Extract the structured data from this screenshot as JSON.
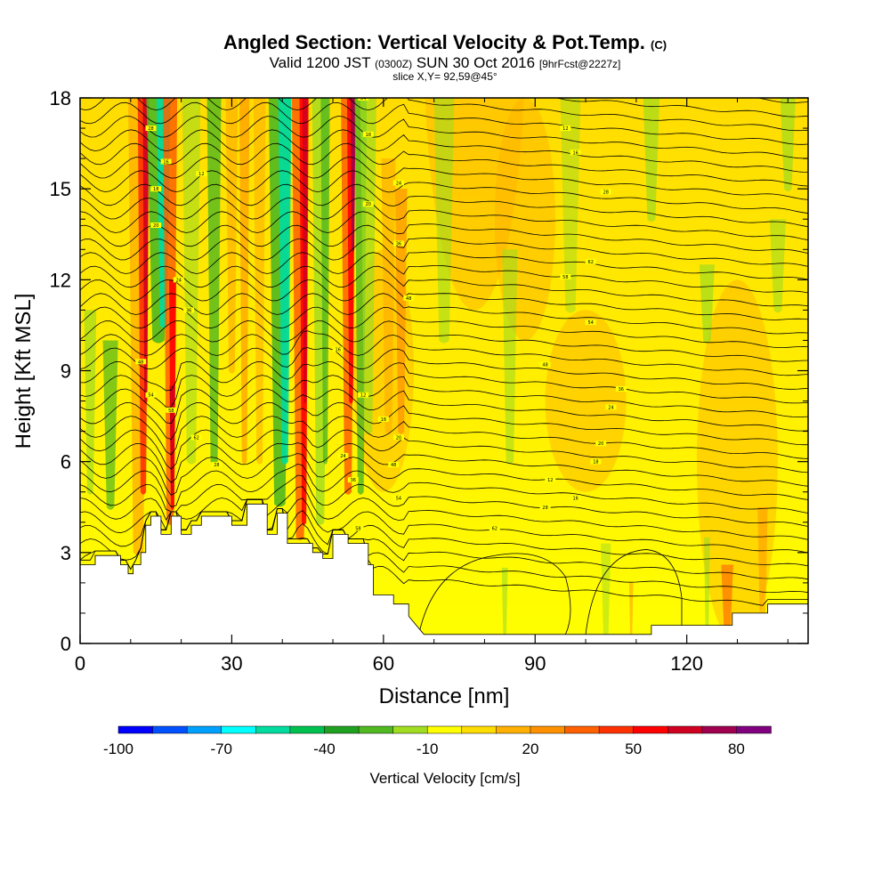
{
  "chart_data": {
    "type": "heatmap",
    "title": "Angled Section: Vertical Velocity & Pot.Temp.",
    "title_unit": "(C)",
    "subtitle_valid": "Valid 1200 JST",
    "subtitle_utc": "(0300Z)",
    "subtitle_date": "SUN 30 Oct 2016",
    "subtitle_fcst": "[9hrFcst@2227z]",
    "slice_label": "slice X,Y= 92,59@45°",
    "xlabel": "Distance [nm]",
    "ylabel": "Height [Kft MSL]",
    "xlim": [
      0,
      144
    ],
    "ylim": [
      0,
      18
    ],
    "x_ticks": [
      0,
      30,
      60,
      90,
      120
    ],
    "y_ticks": [
      0,
      3,
      6,
      9,
      12,
      15,
      18
    ],
    "grid": false,
    "colorbar": {
      "title": "Vertical Velocity [cm/s]",
      "tick_labels": [
        "-100",
        "-70",
        "-40",
        "-10",
        "20",
        "50",
        "80"
      ],
      "tick_values": [
        -100,
        -70,
        -40,
        -10,
        20,
        50,
        80
      ],
      "range": [
        -100,
        90
      ],
      "colors": [
        "#0000ff",
        "#0050ff",
        "#00a0ff",
        "#00ffff",
        "#00dca0",
        "#00c050",
        "#20a020",
        "#50b820",
        "#a0dc20",
        "#ffff00",
        "#ffdc00",
        "#ffb000",
        "#ff9000",
        "#ff6000",
        "#ff3000",
        "#ff0000",
        "#d00020",
        "#a00050",
        "#800080"
      ]
    },
    "updraft_bands_x": [
      12,
      18,
      44,
      55,
      63
    ],
    "downdraft_bands_x": [
      15,
      26,
      40,
      56
    ],
    "terrain_height_kft": [
      [
        0,
        2.6
      ],
      [
        3,
        2.6
      ],
      [
        3,
        2.9
      ],
      [
        8,
        2.9
      ],
      [
        8,
        2.6
      ],
      [
        9.5,
        2.6
      ],
      [
        9.5,
        2.3
      ],
      [
        10.5,
        2.3
      ],
      [
        10.5,
        2.6
      ],
      [
        12,
        2.6
      ],
      [
        12,
        3.0
      ],
      [
        13,
        3.0
      ],
      [
        13,
        3.9
      ],
      [
        14,
        3.9
      ],
      [
        14,
        4.2
      ],
      [
        16,
        4.2
      ],
      [
        16,
        3.6
      ],
      [
        18,
        3.6
      ],
      [
        18,
        4.2
      ],
      [
        20,
        4.2
      ],
      [
        20,
        3.6
      ],
      [
        22,
        3.6
      ],
      [
        22,
        3.9
      ],
      [
        24,
        3.9
      ],
      [
        24,
        4.2
      ],
      [
        30,
        4.2
      ],
      [
        30,
        3.9
      ],
      [
        33,
        3.9
      ],
      [
        33,
        4.6
      ],
      [
        37,
        4.6
      ],
      [
        37,
        3.6
      ],
      [
        39,
        3.6
      ],
      [
        39,
        4.3
      ],
      [
        41,
        4.3
      ],
      [
        41,
        3.3
      ],
      [
        46,
        3.3
      ],
      [
        46,
        3.0
      ],
      [
        48,
        3.0
      ],
      [
        48,
        2.8
      ],
      [
        50,
        2.8
      ],
      [
        50,
        3.6
      ],
      [
        53,
        3.6
      ],
      [
        53,
        3.3
      ],
      [
        57,
        3.3
      ],
      [
        57,
        2.6
      ],
      [
        58,
        2.6
      ],
      [
        58,
        1.6
      ],
      [
        62,
        1.6
      ],
      [
        62,
        1.3
      ],
      [
        65,
        1.3
      ],
      [
        65,
        0.9
      ],
      [
        68,
        0.3
      ],
      [
        72,
        0.3
      ],
      [
        113,
        0.3
      ],
      [
        113,
        0.6
      ],
      [
        129,
        0.6
      ],
      [
        129,
        1.0
      ],
      [
        136,
        1.0
      ],
      [
        136,
        1.3
      ],
      [
        144,
        1.3
      ]
    ],
    "isentrope_labels": [
      "28",
      "16",
      "12",
      "18",
      "20",
      "24",
      "36",
      "48",
      "54",
      "58",
      "62"
    ]
  }
}
